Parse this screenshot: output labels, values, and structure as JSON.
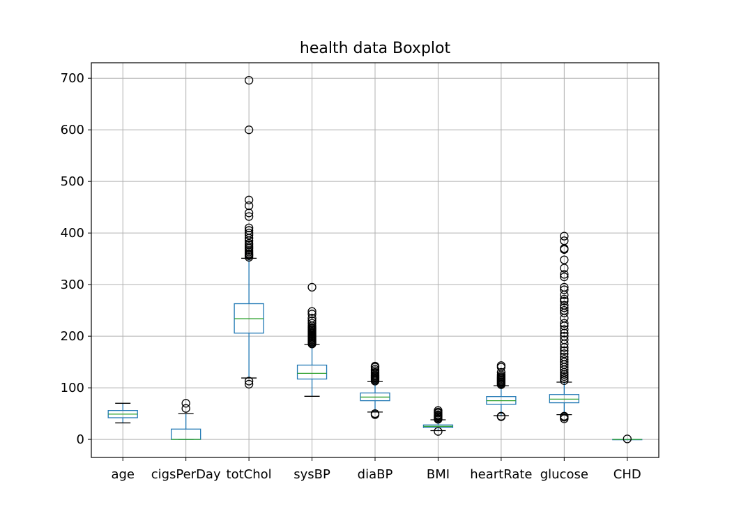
{
  "chart_data": {
    "type": "boxplot",
    "title": "health data Boxplot",
    "xlabel": "",
    "ylabel": "",
    "ylim": [
      -35,
      730
    ],
    "yticks": [
      0,
      100,
      200,
      300,
      400,
      500,
      600,
      700
    ],
    "grid": true,
    "colors": {
      "box": "#1f77b4",
      "median": "#2ca02c",
      "whisker": "#000000",
      "flier": "#000000",
      "grid": "#b0b0b0"
    },
    "series": [
      {
        "name": "age",
        "q1": 42,
        "median": 49,
        "q3": 56,
        "whislo": 32,
        "whishi": 70,
        "fliers": []
      },
      {
        "name": "cigsPerDay",
        "q1": 0,
        "median": 0,
        "q3": 20,
        "whislo": 0,
        "whishi": 50,
        "fliers": [
          60,
          70
        ]
      },
      {
        "name": "totChol",
        "q1": 206,
        "median": 234,
        "q3": 263,
        "whislo": 119,
        "whishi": 351,
        "fliers": [
          107,
          113,
          353,
          356,
          358,
          360,
          363,
          366,
          370,
          373,
          377,
          380,
          385,
          390,
          396,
          400,
          405,
          410,
          432,
          439,
          453,
          464,
          600,
          696
        ]
      },
      {
        "name": "sysBP",
        "q1": 117,
        "median": 128,
        "q3": 144,
        "whislo": 83.5,
        "whishi": 184,
        "fliers": [
          185,
          187,
          189,
          191,
          193,
          195,
          197,
          199,
          201,
          203,
          205,
          207,
          209,
          211,
          213,
          215,
          217,
          220,
          225,
          230,
          235,
          243,
          248,
          295
        ]
      },
      {
        "name": "diaBP",
        "q1": 75,
        "median": 82,
        "q3": 90,
        "whislo": 53,
        "whishi": 112,
        "fliers": [
          48,
          50,
          113,
          115,
          117,
          119,
          121,
          123,
          125,
          128,
          130,
          133,
          136,
          140,
          142
        ]
      },
      {
        "name": "BMI",
        "q1": 23,
        "median": 25.4,
        "q3": 28,
        "whislo": 17,
        "whishi": 38,
        "fliers": [
          15.5,
          39,
          40,
          42,
          44,
          46,
          48,
          51,
          53,
          56
        ]
      },
      {
        "name": "heartRate",
        "q1": 68,
        "median": 75,
        "q3": 83,
        "whislo": 46,
        "whishi": 104,
        "fliers": [
          44,
          45,
          106,
          108,
          110,
          112,
          114,
          116,
          118,
          120,
          122,
          125,
          130,
          140,
          143
        ]
      },
      {
        "name": "glucose",
        "q1": 71,
        "median": 78,
        "q3": 87,
        "whislo": 48,
        "whishi": 111,
        "fliers": [
          40,
          43,
          45,
          114,
          118,
          122,
          126,
          130,
          135,
          140,
          145,
          150,
          155,
          160,
          166,
          172,
          178,
          185,
          193,
          200,
          206,
          213,
          220,
          225,
          235,
          245,
          250,
          255,
          260,
          268,
          272,
          280,
          290,
          295,
          315,
          320,
          332,
          348,
          368,
          370,
          385,
          394
        ]
      },
      {
        "name": "CHD",
        "q1": 0,
        "median": 0,
        "q3": 0,
        "whislo": 0,
        "whishi": 0,
        "fliers": [
          1
        ]
      }
    ]
  }
}
